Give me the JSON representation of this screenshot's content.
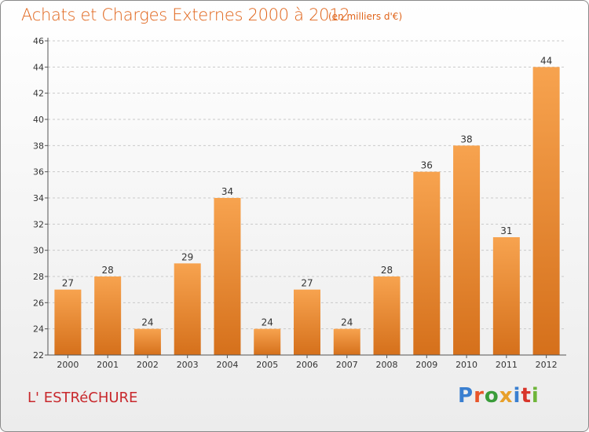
{
  "header": {
    "title": "Achats et Charges Externes 2000 à 2012",
    "unit": "(en milliers d'€)"
  },
  "footer": {
    "commune": "L' ESTRéCHURE",
    "brand": "Proxiti",
    "brand_letters": [
      {
        "ch": "P",
        "color": "#3a7fd0"
      },
      {
        "ch": "r",
        "color": "#e8552a"
      },
      {
        "ch": "o",
        "color": "#3a9c3a"
      },
      {
        "ch": "x",
        "color": "#e8a02a"
      },
      {
        "ch": "i",
        "color": "#3a7fd0"
      },
      {
        "ch": "t",
        "color": "#d8352a"
      },
      {
        "ch": "i",
        "color": "#6fb53a"
      }
    ]
  },
  "colors": {
    "bar_top": "#f7a34f",
    "bar_bottom": "#d5701b",
    "grid": "#c9c9c9",
    "axis": "#555555",
    "text": "#333333"
  },
  "chart_data": {
    "type": "bar",
    "title": "Achats et Charges Externes 2000 à 2012",
    "subtitle": "(en milliers d'€)",
    "categories": [
      "2000",
      "2001",
      "2002",
      "2003",
      "2004",
      "2005",
      "2006",
      "2007",
      "2008",
      "2009",
      "2010",
      "2011",
      "2012"
    ],
    "values": [
      27,
      28,
      24,
      29,
      34,
      24,
      27,
      24,
      28,
      36,
      38,
      31,
      44
    ],
    "ylim": [
      22,
      46
    ],
    "yticks": [
      22,
      24,
      26,
      28,
      30,
      32,
      34,
      36,
      38,
      40,
      42,
      44,
      46
    ],
    "grid": true,
    "data_labels": true,
    "xlabel": "",
    "ylabel": ""
  }
}
